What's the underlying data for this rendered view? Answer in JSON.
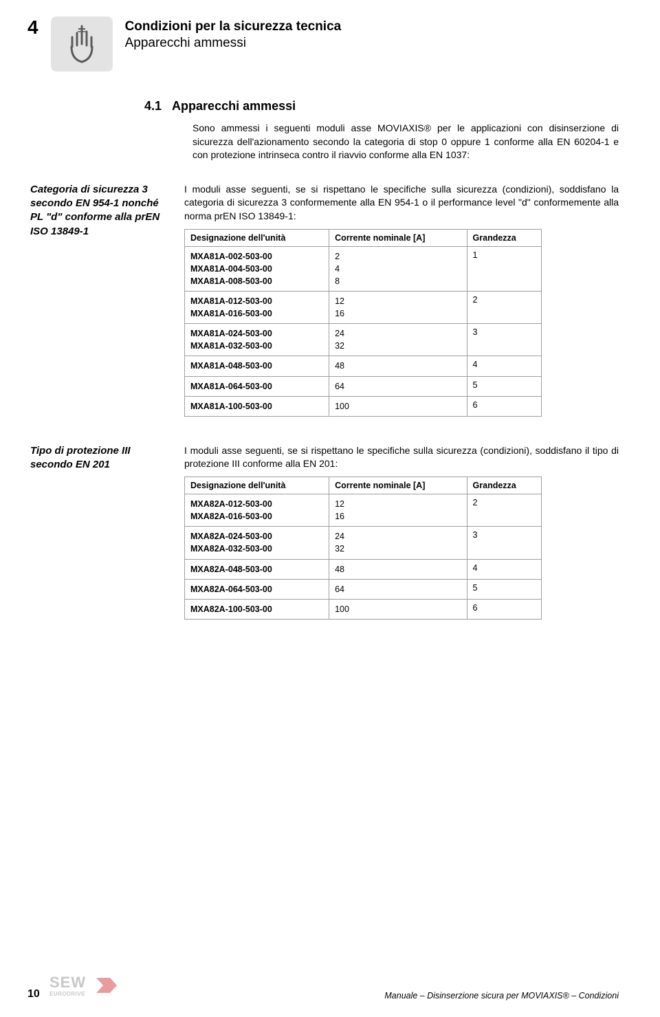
{
  "chapterNumber": "4",
  "headerTitle": "Condizioni per la sicurezza tecnica",
  "headerSubtitle": "Apparecchi ammessi",
  "sectionNumber": "4.1",
  "sectionTitle": "Apparecchi ammessi",
  "introParagraph": "Sono ammessi i seguenti moduli asse MOVIAXIS® per le applicazioni con disinserzione di sicurezza dell'azionamento secondo la categoria di stop 0 oppure 1 conforme alla EN 60204-1 e con protezione intrinseca contro il riavvio conforme alla EN 1037:",
  "block1": {
    "sideLabel": "Categoria di sicurezza 3 secondo EN 954-1 nonché PL \"d\" conforme alla prEN ISO 13849-1",
    "intro": "I moduli asse seguenti, se si rispettano le specifiche sulla sicurezza (condizioni), soddisfano la categoria di sicurezza 3 conformemente alla EN 954-1 o il performance level \"d\" conformemente alla norma prEN ISO 13849-1:",
    "columns": [
      "Designazione dell'unità",
      "Corrente nominale [A]",
      "Grandezza"
    ],
    "rows": [
      {
        "des": "MXA81A-002-503-00\nMXA81A-004-503-00\nMXA81A-008-503-00",
        "cur": "2\n4\n8",
        "grand": "1"
      },
      {
        "des": "MXA81A-012-503-00\nMXA81A-016-503-00",
        "cur": "12\n16",
        "grand": "2"
      },
      {
        "des": "MXA81A-024-503-00\nMXA81A-032-503-00",
        "cur": "24\n32",
        "grand": "3"
      },
      {
        "des": "MXA81A-048-503-00",
        "cur": "48",
        "grand": "4"
      },
      {
        "des": "MXA81A-064-503-00",
        "cur": "64",
        "grand": "5"
      },
      {
        "des": "MXA81A-100-503-00",
        "cur": "100",
        "grand": "6"
      }
    ]
  },
  "block2": {
    "sideLabel": "Tipo di protezione III secondo EN 201",
    "intro": "I moduli asse seguenti, se si rispettano le specifiche sulla sicurezza (condizioni), soddisfano il tipo di protezione III conforme alla EN 201:",
    "columns": [
      "Designazione dell'unità",
      "Corrente nominale [A]",
      "Grandezza"
    ],
    "rows": [
      {
        "des": "MXA82A-012-503-00\nMXA82A-016-503-00",
        "cur": "12\n16",
        "grand": "2"
      },
      {
        "des": "MXA82A-024-503-00\nMXA82A-032-503-00",
        "cur": "24\n32",
        "grand": "3"
      },
      {
        "des": "MXA82A-048-503-00",
        "cur": "48",
        "grand": "4"
      },
      {
        "des": "MXA82A-064-503-00",
        "cur": "64",
        "grand": "5"
      },
      {
        "des": "MXA82A-100-503-00",
        "cur": "100",
        "grand": "6"
      }
    ]
  },
  "pageNumber": "10",
  "footerText": "Manuale – Disinserzione sicura per MOVIAXIS® – Condizioni",
  "colors": {
    "iconBg": "#e3e3e3",
    "tableBorder": "#9e9e9e",
    "logoGray": "#c8c8c8",
    "logoRed": "#d84b4b"
  }
}
